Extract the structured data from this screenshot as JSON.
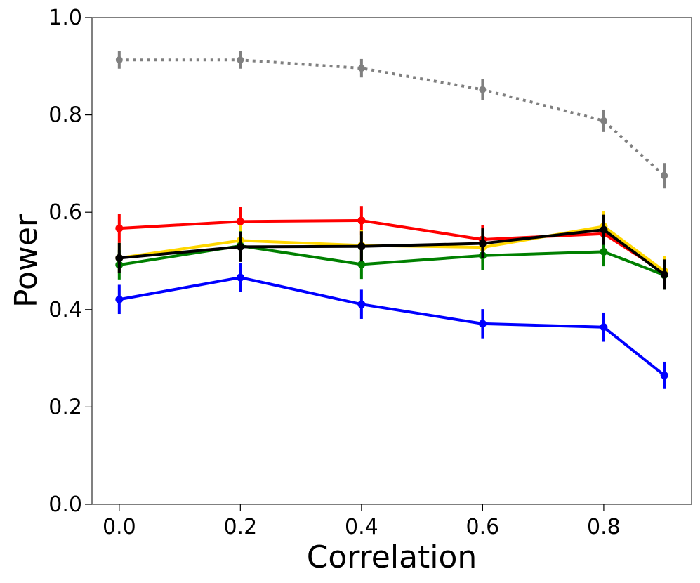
{
  "chart_data": {
    "type": "line",
    "title": "",
    "xlabel": "Correlation",
    "ylabel": "Power",
    "xlim": [
      -0.045,
      0.945
    ],
    "ylim": [
      0.0,
      1.0
    ],
    "xticks": [
      0.0,
      0.2,
      0.4,
      0.6,
      0.8
    ],
    "xtick_labels": [
      "0.0",
      "0.2",
      "0.4",
      "0.6",
      "0.8"
    ],
    "yticks": [
      0.0,
      0.2,
      0.4,
      0.6,
      0.8,
      1.0
    ],
    "ytick_labels": [
      "0.0",
      "0.2",
      "0.4",
      "0.6",
      "0.8",
      "1.0"
    ],
    "grid": false,
    "legend": "none",
    "x": [
      0.0,
      0.2,
      0.4,
      0.6,
      0.8,
      0.9
    ],
    "series": [
      {
        "name": "gray-dotted",
        "color": "#808080",
        "linestyle": "dotted",
        "values": [
          0.913,
          0.913,
          0.896,
          0.852,
          0.788,
          0.675
        ],
        "errors": [
          0.018,
          0.018,
          0.019,
          0.021,
          0.023,
          0.026
        ]
      },
      {
        "name": "red",
        "color": "#ff0000",
        "linestyle": "solid",
        "values": [
          0.567,
          0.581,
          0.583,
          0.544,
          0.556,
          0.476
        ],
        "errors": [
          0.03,
          0.03,
          0.03,
          0.03,
          0.03,
          0.03
        ]
      },
      {
        "name": "yellow",
        "color": "#ffd700",
        "linestyle": "solid",
        "values": [
          0.506,
          0.542,
          0.532,
          0.528,
          0.571,
          0.479
        ],
        "errors": [
          0.031,
          0.031,
          0.031,
          0.031,
          0.031,
          0.031
        ]
      },
      {
        "name": "green",
        "color": "#008000",
        "linestyle": "solid",
        "values": [
          0.492,
          0.531,
          0.493,
          0.511,
          0.519,
          0.471
        ],
        "errors": [
          0.03,
          0.03,
          0.03,
          0.03,
          0.03,
          0.03
        ]
      },
      {
        "name": "blue",
        "color": "#0000ff",
        "linestyle": "solid",
        "values": [
          0.421,
          0.466,
          0.411,
          0.371,
          0.364,
          0.265
        ],
        "errors": [
          0.03,
          0.03,
          0.03,
          0.03,
          0.03,
          0.028
        ]
      },
      {
        "name": "black",
        "color": "#000000",
        "linestyle": "solid",
        "values": [
          0.506,
          0.529,
          0.53,
          0.536,
          0.564,
          0.472
        ],
        "errors": [
          0.031,
          0.031,
          0.031,
          0.031,
          0.031,
          0.031
        ]
      }
    ]
  }
}
